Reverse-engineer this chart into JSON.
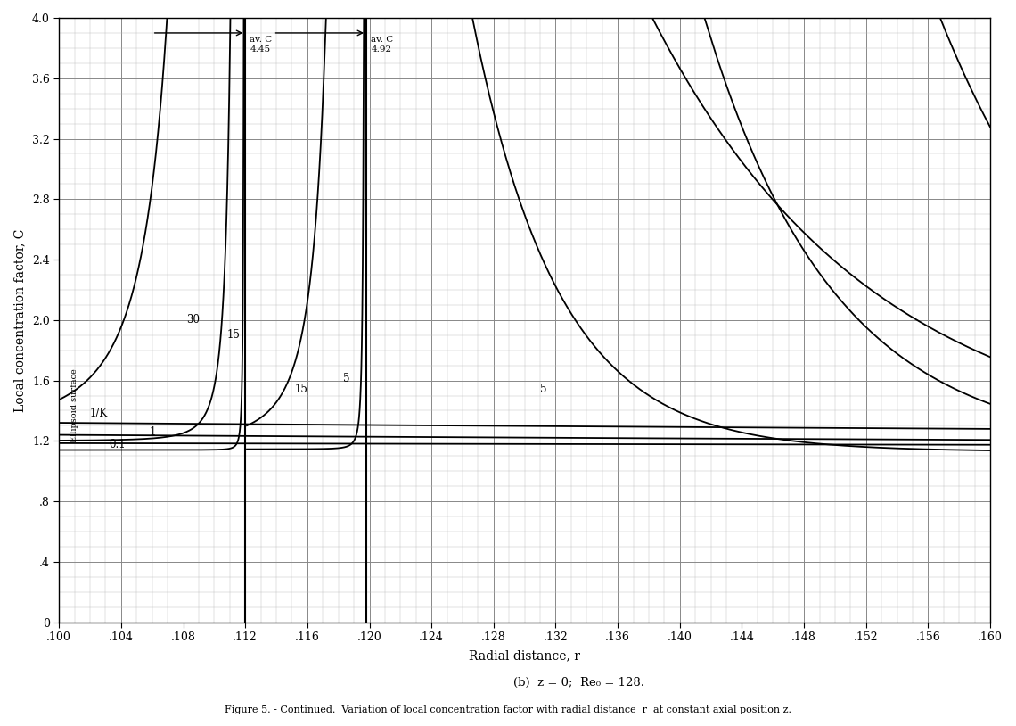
{
  "xlim": [
    0.1,
    0.16
  ],
  "ylim": [
    0.0,
    4.0
  ],
  "xlabel": "Radial distance, r",
  "ylabel": "Local concentration factor, C",
  "subtitle": "(b)  z = 0;  Re₀ = 128.",
  "caption": "Figure 5. - Continued.  Variation of local concentration factor with radial distance  r  at constant axial position z.",
  "xticks": [
    0.1,
    0.104,
    0.108,
    0.112,
    0.116,
    0.12,
    0.124,
    0.128,
    0.132,
    0.136,
    0.14,
    0.144,
    0.148,
    0.152,
    0.156,
    0.16
  ],
  "yticks": [
    0.0,
    0.4,
    0.8,
    1.2,
    1.6,
    2.0,
    2.4,
    2.8,
    3.2,
    3.6,
    4.0
  ],
  "vline1_x": 0.112,
  "vline2_x": 0.1198,
  "background_color": "#ffffff",
  "grid_major_color": "#888888",
  "grid_minor_color": "#bbbbbb",
  "curve_color": "#000000"
}
